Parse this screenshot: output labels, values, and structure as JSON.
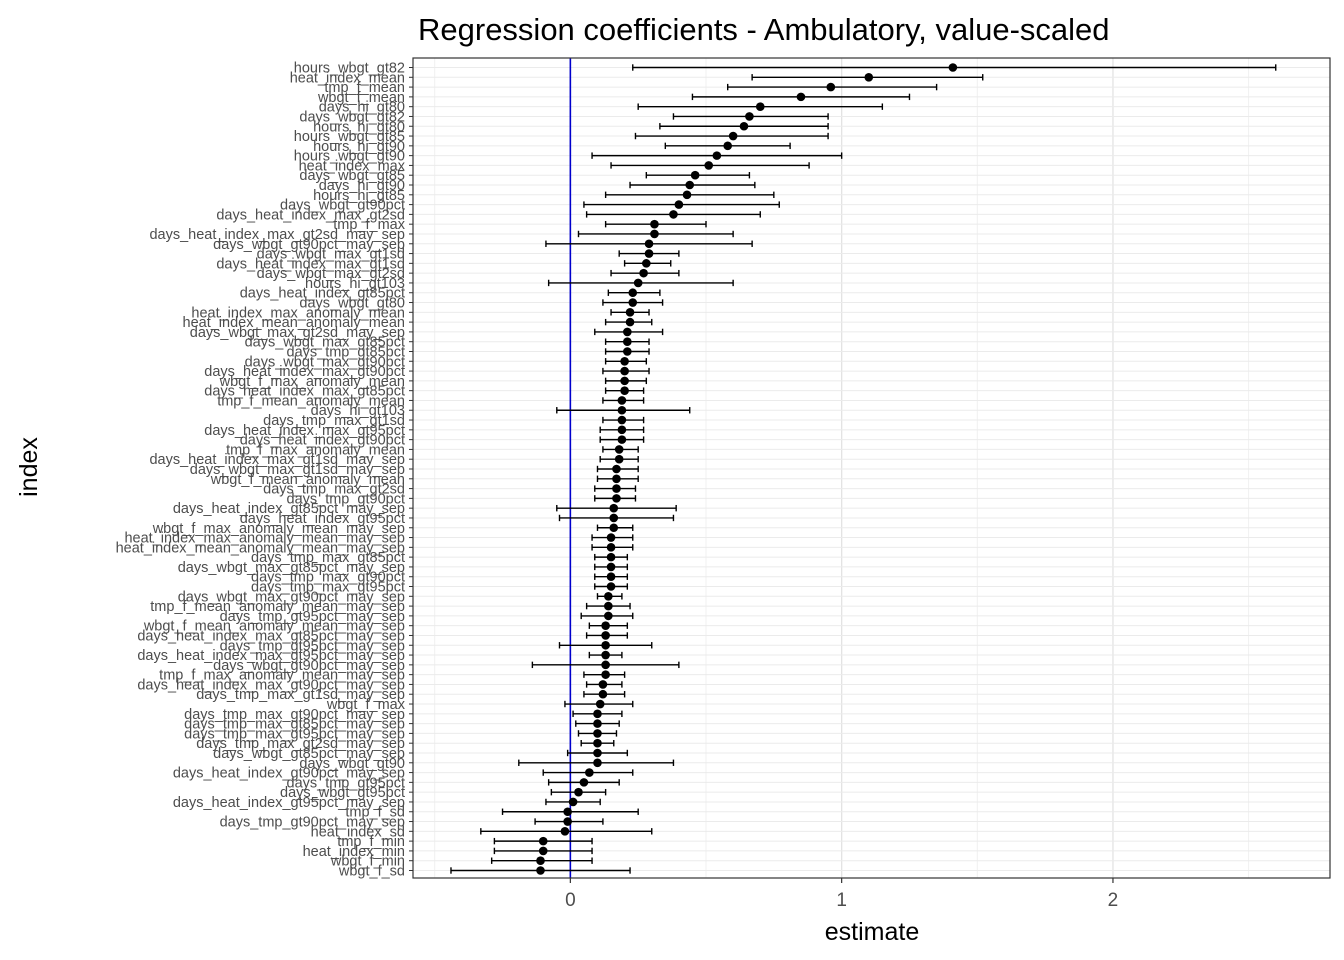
{
  "chart_data": {
    "type": "scatter",
    "title": "Regression coefficients - Ambulatory, value-scaled",
    "xlabel": "estimate",
    "ylabel": "index",
    "xlim": [
      -0.58,
      2.8
    ],
    "xticks": [
      0,
      1,
      2
    ],
    "reference_line": {
      "x": 0,
      "color": "#0000cc"
    },
    "grid": true,
    "error_bars": true,
    "points": [
      {
        "label": "hours_wbgt_gt82",
        "estimate": 1.41,
        "low": 0.23,
        "high": 2.6
      },
      {
        "label": "heat_index_mean",
        "estimate": 1.1,
        "low": 0.67,
        "high": 1.52
      },
      {
        "label": "tmp_f_mean",
        "estimate": 0.96,
        "low": 0.58,
        "high": 1.35
      },
      {
        "label": "wbgt_f_mean",
        "estimate": 0.85,
        "low": 0.45,
        "high": 1.25
      },
      {
        "label": "days_hi_gt80",
        "estimate": 0.7,
        "low": 0.25,
        "high": 1.15
      },
      {
        "label": "days_wbgt_gt82",
        "estimate": 0.66,
        "low": 0.38,
        "high": 0.95
      },
      {
        "label": "hours_hi_gt80",
        "estimate": 0.64,
        "low": 0.33,
        "high": 0.95
      },
      {
        "label": "hours_wbgt_gt85",
        "estimate": 0.6,
        "low": 0.24,
        "high": 0.95
      },
      {
        "label": "hours_hi_gt90",
        "estimate": 0.58,
        "low": 0.35,
        "high": 0.81
      },
      {
        "label": "hours_wbgt_gt90",
        "estimate": 0.54,
        "low": 0.08,
        "high": 1.0
      },
      {
        "label": "heat_index_max",
        "estimate": 0.51,
        "low": 0.15,
        "high": 0.88
      },
      {
        "label": "days_wbgt_gt85",
        "estimate": 0.46,
        "low": 0.28,
        "high": 0.66
      },
      {
        "label": "days_hi_gt90",
        "estimate": 0.44,
        "low": 0.22,
        "high": 0.68
      },
      {
        "label": "hours_hi_gt85",
        "estimate": 0.43,
        "low": 0.13,
        "high": 0.75
      },
      {
        "label": "days_wbgt_gt90pct",
        "estimate": 0.4,
        "low": 0.05,
        "high": 0.77
      },
      {
        "label": "days_heat_index_max_gt2sd",
        "estimate": 0.38,
        "low": 0.06,
        "high": 0.7
      },
      {
        "label": "tmp_f_max",
        "estimate": 0.31,
        "low": 0.13,
        "high": 0.5
      },
      {
        "label": "days_heat_index_max_gt2sd_may_sep",
        "estimate": 0.31,
        "low": 0.03,
        "high": 0.6
      },
      {
        "label": "days_wbgt_gt90pct_may_sep",
        "estimate": 0.29,
        "low": -0.09,
        "high": 0.67
      },
      {
        "label": "days_wbgt_max_gt1sd",
        "estimate": 0.29,
        "low": 0.18,
        "high": 0.4
      },
      {
        "label": "days_heat_index_max_gt1sd",
        "estimate": 0.28,
        "low": 0.2,
        "high": 0.37
      },
      {
        "label": "days_wbgt_max_gt2sd",
        "estimate": 0.27,
        "low": 0.15,
        "high": 0.4
      },
      {
        "label": "hours_hi_gt103",
        "estimate": 0.25,
        "low": -0.08,
        "high": 0.6
      },
      {
        "label": "days_heat_index_gt85pct",
        "estimate": 0.23,
        "low": 0.14,
        "high": 0.33
      },
      {
        "label": "days_wbgt_gt80",
        "estimate": 0.23,
        "low": 0.12,
        "high": 0.34
      },
      {
        "label": "heat_index_max_anomaly_mean",
        "estimate": 0.22,
        "low": 0.15,
        "high": 0.29
      },
      {
        "label": "heat_index_mean_anomaly_mean",
        "estimate": 0.22,
        "low": 0.13,
        "high": 0.3
      },
      {
        "label": "days_wbgt_max_gt2sd_may_sep",
        "estimate": 0.21,
        "low": 0.09,
        "high": 0.34
      },
      {
        "label": "days_wbgt_max_gt85pct",
        "estimate": 0.21,
        "low": 0.13,
        "high": 0.29
      },
      {
        "label": "days_tmp_gt85pct",
        "estimate": 0.21,
        "low": 0.13,
        "high": 0.29
      },
      {
        "label": "days_wbgt_max_gt90pct",
        "estimate": 0.2,
        "low": 0.13,
        "high": 0.28
      },
      {
        "label": "days_heat_index_max_gt90pct",
        "estimate": 0.2,
        "low": 0.12,
        "high": 0.29
      },
      {
        "label": "wbgt_f_max_anomaly_mean",
        "estimate": 0.2,
        "low": 0.13,
        "high": 0.28
      },
      {
        "label": "days_heat_index_max_gt85pct",
        "estimate": 0.2,
        "low": 0.13,
        "high": 0.27
      },
      {
        "label": "tmp_f_mean_anomaly_mean",
        "estimate": 0.19,
        "low": 0.12,
        "high": 0.27
      },
      {
        "label": "days_hi_gt103",
        "estimate": 0.19,
        "low": -0.05,
        "high": 0.44
      },
      {
        "label": "days_tmp_max_gt1sd",
        "estimate": 0.19,
        "low": 0.12,
        "high": 0.27
      },
      {
        "label": "days_heat_index_max_gt95pct",
        "estimate": 0.19,
        "low": 0.11,
        "high": 0.27
      },
      {
        "label": "days_heat_index_gt90pct",
        "estimate": 0.19,
        "low": 0.11,
        "high": 0.27
      },
      {
        "label": "tmp_f_max_anomaly_mean",
        "estimate": 0.18,
        "low": 0.12,
        "high": 0.25
      },
      {
        "label": "days_heat_index_max_gt1sd_may_sep",
        "estimate": 0.18,
        "low": 0.11,
        "high": 0.25
      },
      {
        "label": "days_wbgt_max_gt1sd_may_sep",
        "estimate": 0.17,
        "low": 0.1,
        "high": 0.25
      },
      {
        "label": "wbgt_f_mean_anomaly_mean",
        "estimate": 0.17,
        "low": 0.1,
        "high": 0.25
      },
      {
        "label": "days_tmp_max_gt2sd",
        "estimate": 0.17,
        "low": 0.09,
        "high": 0.24
      },
      {
        "label": "days_tmp_gt90pct",
        "estimate": 0.17,
        "low": 0.09,
        "high": 0.24
      },
      {
        "label": "days_heat_index_gt85pct_may_sep",
        "estimate": 0.16,
        "low": -0.05,
        "high": 0.39
      },
      {
        "label": "days_heat_index_gt95pct",
        "estimate": 0.16,
        "low": -0.04,
        "high": 0.38
      },
      {
        "label": "wbgt_f_max_anomaly_mean_may_sep",
        "estimate": 0.16,
        "low": 0.1,
        "high": 0.23
      },
      {
        "label": "heat_index_max_anomaly_mean_may_sep",
        "estimate": 0.15,
        "low": 0.08,
        "high": 0.23
      },
      {
        "label": "heat_index_mean_anomaly_mean_may_sep",
        "estimate": 0.15,
        "low": 0.08,
        "high": 0.23
      },
      {
        "label": "days_tmp_max_gt85pct",
        "estimate": 0.15,
        "low": 0.09,
        "high": 0.21
      },
      {
        "label": "days_wbgt_max_gt85pct_may_sep",
        "estimate": 0.15,
        "low": 0.09,
        "high": 0.21
      },
      {
        "label": "days_tmp_max_gt90pct",
        "estimate": 0.15,
        "low": 0.09,
        "high": 0.21
      },
      {
        "label": "days_tmp_max_gt95pct",
        "estimate": 0.15,
        "low": 0.09,
        "high": 0.21
      },
      {
        "label": "days_wbgt_max_gt90pct_may_sep",
        "estimate": 0.14,
        "low": 0.1,
        "high": 0.19
      },
      {
        "label": "tmp_f_mean_anomaly_mean_may_sep",
        "estimate": 0.14,
        "low": 0.06,
        "high": 0.22
      },
      {
        "label": "days_tmp_gt95pct_may_sep",
        "estimate": 0.14,
        "low": 0.04,
        "high": 0.23
      },
      {
        "label": "wbgt_f_mean_anomaly_mean_may_sep",
        "estimate": 0.13,
        "low": 0.07,
        "high": 0.21
      },
      {
        "label": "days_heat_index_max_gt85pct_may_sep",
        "estimate": 0.13,
        "low": 0.06,
        "high": 0.21
      },
      {
        "label": "days_tmp_gt95pct_may_sep",
        "estimate": 0.13,
        "low": -0.04,
        "high": 0.3
      },
      {
        "label": "days_heat_index_max_gt95pct_may_sep",
        "estimate": 0.13,
        "low": 0.07,
        "high": 0.19
      },
      {
        "label": "days_wbgt_gt90pct_may_sep",
        "estimate": 0.13,
        "low": -0.14,
        "high": 0.4
      },
      {
        "label": "tmp_f_max_anomaly_mean_may_sep",
        "estimate": 0.13,
        "low": 0.05,
        "high": 0.2
      },
      {
        "label": "days_heat_index_max_gt90pct_may_sep",
        "estimate": 0.12,
        "low": 0.06,
        "high": 0.19
      },
      {
        "label": "days_tmp_max_gt1sd_may_sep",
        "estimate": 0.12,
        "low": 0.05,
        "high": 0.2
      },
      {
        "label": "wbgt_f_max",
        "estimate": 0.11,
        "low": -0.02,
        "high": 0.23
      },
      {
        "label": "days_tmp_max_gt90pct_may_sep",
        "estimate": 0.1,
        "low": 0.01,
        "high": 0.19
      },
      {
        "label": "days_tmp_max_gt85pct_may_sep",
        "estimate": 0.1,
        "low": 0.02,
        "high": 0.18
      },
      {
        "label": "days_tmp_max_gt95pct_may_sep",
        "estimate": 0.1,
        "low": 0.03,
        "high": 0.17
      },
      {
        "label": "days_tmp_max_gt2sd_may_sep",
        "estimate": 0.1,
        "low": 0.04,
        "high": 0.16
      },
      {
        "label": "days_wbgt_gt85pct_may_sep",
        "estimate": 0.1,
        "low": -0.01,
        "high": 0.21
      },
      {
        "label": "days_wbgt_gt90",
        "estimate": 0.1,
        "low": -0.19,
        "high": 0.38
      },
      {
        "label": "days_heat_index_gt90pct_may_sep",
        "estimate": 0.07,
        "low": -0.1,
        "high": 0.23
      },
      {
        "label": "days_tmp_gt95pct",
        "estimate": 0.05,
        "low": -0.08,
        "high": 0.18
      },
      {
        "label": "days_wbgt_gt95pct",
        "estimate": 0.03,
        "low": -0.07,
        "high": 0.13
      },
      {
        "label": "days_heat_index_gt95pct_may_sep",
        "estimate": 0.01,
        "low": -0.09,
        "high": 0.11
      },
      {
        "label": "tmp_f_sd",
        "estimate": -0.01,
        "low": -0.25,
        "high": 0.25
      },
      {
        "label": "days_tmp_gt90pct_may_sep",
        "estimate": -0.01,
        "low": -0.13,
        "high": 0.12
      },
      {
        "label": "heat_index_sd",
        "estimate": -0.02,
        "low": -0.33,
        "high": 0.3
      },
      {
        "label": "tmp_f_min",
        "estimate": -0.1,
        "low": -0.28,
        "high": 0.08
      },
      {
        "label": "heat_index_min",
        "estimate": -0.1,
        "low": -0.28,
        "high": 0.08
      },
      {
        "label": "wbgt_f_min",
        "estimate": -0.11,
        "low": -0.29,
        "high": 0.08
      },
      {
        "label": "wbgt_f_sd",
        "estimate": -0.11,
        "low": -0.44,
        "high": 0.22
      }
    ]
  }
}
